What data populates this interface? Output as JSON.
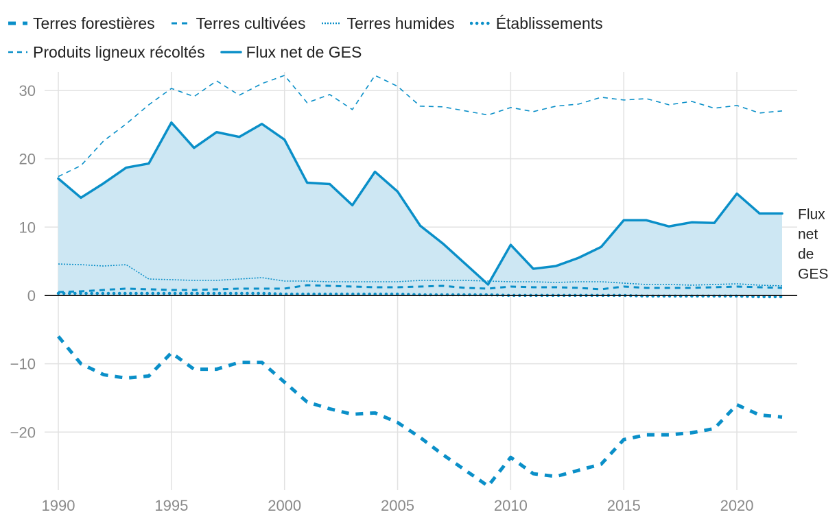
{
  "chart_data": {
    "type": "line",
    "title": "",
    "xlabel": "",
    "ylabel": "",
    "xlim": [
      1990,
      2022
    ],
    "ylim": [
      -28,
      32
    ],
    "x_ticks": [
      1990,
      1995,
      2000,
      2005,
      2010,
      2015,
      2020
    ],
    "y_ticks": [
      30,
      20,
      10,
      0,
      -10,
      -20
    ],
    "y_tick_labels": [
      "30",
      "20",
      "10",
      "0",
      "−10",
      "−20"
    ],
    "x": [
      1990,
      1991,
      1992,
      1993,
      1994,
      1995,
      1996,
      1997,
      1998,
      1999,
      2000,
      2001,
      2002,
      2003,
      2004,
      2005,
      2006,
      2007,
      2008,
      2009,
      2010,
      2011,
      2012,
      2013,
      2014,
      2015,
      2016,
      2017,
      2018,
      2019,
      2020,
      2021,
      2022
    ],
    "end_label": [
      "Flux",
      "net",
      "de",
      "GES"
    ],
    "series": [
      {
        "name": "Terres forestières",
        "style": "dash-thick",
        "color": "#0a8fc8",
        "values": [
          -6,
          -10,
          -11.6,
          -12.1,
          -11.8,
          -8.4,
          -10.8,
          -10.8,
          -9.8,
          -9.8,
          -12.7,
          -15.6,
          -16.6,
          -17.4,
          -17.2,
          -18.6,
          -20.8,
          -23.3,
          -25.6,
          -27.9,
          -23.7,
          -26.1,
          -26.5,
          -25.6,
          -24.7,
          -21.1,
          -20.4,
          -20.4,
          -20.1,
          -19.5,
          -16,
          -17.5,
          -17.8
        ]
      },
      {
        "name": "Terres cultivées",
        "style": "dash-medium",
        "color": "#0a8fc8",
        "values": [
          0.5,
          0.6,
          0.8,
          1,
          0.9,
          0.8,
          0.8,
          0.9,
          1,
          1,
          1,
          1.5,
          1.4,
          1.3,
          1.2,
          1.2,
          1.3,
          1.4,
          1.1,
          1,
          1.3,
          1.2,
          1.2,
          1.1,
          0.9,
          1.3,
          1.1,
          1.1,
          1.1,
          1.2,
          1.3,
          1.2,
          1.1
        ]
      },
      {
        "name": "Terres humides",
        "style": "dotted-thin",
        "color": "#0a8fc8",
        "values": [
          4.6,
          4.5,
          4.3,
          4.5,
          2.4,
          2.3,
          2.2,
          2.2,
          2.4,
          2.6,
          2.1,
          2.1,
          2,
          2,
          2,
          2,
          2.2,
          2.2,
          2.2,
          2.1,
          2,
          2,
          1.9,
          2,
          2,
          1.8,
          1.6,
          1.6,
          1.5,
          1.6,
          1.7,
          1.5,
          1.4
        ]
      },
      {
        "name": "Établissements",
        "style": "dots-round",
        "color": "#0a8fc8",
        "values": [
          0.3,
          0.3,
          0.3,
          0.3,
          0.3,
          0.3,
          0.3,
          0.3,
          0.3,
          0.3,
          0.2,
          0.2,
          0.2,
          0.2,
          0.2,
          0.2,
          0.1,
          0.1,
          0.1,
          0.1,
          0,
          0,
          0,
          0,
          0,
          0,
          -0.1,
          -0.1,
          -0.1,
          -0.1,
          -0.1,
          -0.2,
          -0.2
        ]
      },
      {
        "name": "Produits ligneux récoltés",
        "style": "dash-thin",
        "color": "#0a8fc8",
        "values": [
          17.4,
          19,
          22.6,
          25.1,
          27.9,
          30.3,
          29.1,
          31.4,
          29.3,
          31,
          32.2,
          28.2,
          29.4,
          27.2,
          32.2,
          30.6,
          27.7,
          27.6,
          27,
          26.4,
          27.5,
          26.9,
          27.7,
          28,
          29,
          28.6,
          28.8,
          27.9,
          28.4,
          27.4,
          27.8,
          26.7,
          27
        ]
      },
      {
        "name": "Flux net de GES",
        "style": "solid",
        "color": "#0a8fc8",
        "values": [
          17.1,
          14.3,
          16.4,
          18.7,
          19.3,
          25.3,
          21.6,
          23.9,
          23.2,
          25.1,
          22.8,
          16.5,
          16.3,
          13.2,
          18.1,
          15.2,
          10.2,
          7.6,
          4.6,
          1.6,
          7.4,
          3.9,
          4.3,
          5.5,
          7.1,
          11,
          11,
          10.1,
          10.7,
          10.6,
          14.9,
          12,
          12
        ]
      }
    ]
  },
  "legend": {
    "items": [
      {
        "label": "Terres forestières",
        "style": "dash-thick"
      },
      {
        "label": "Terres cultivées",
        "style": "dash-medium"
      },
      {
        "label": "Terres humides",
        "style": "dotted-thin"
      },
      {
        "label": "Établissements",
        "style": "dots-round"
      },
      {
        "label": "Produits ligneux récoltés",
        "style": "dash-thin"
      },
      {
        "label": "Flux net de GES",
        "style": "solid"
      }
    ]
  },
  "colors": {
    "line": "#0a8fc8",
    "fill": "#cde7f3",
    "grid": "#e1e1e1",
    "zero": "#111111",
    "tick": "#8a8a8a"
  }
}
